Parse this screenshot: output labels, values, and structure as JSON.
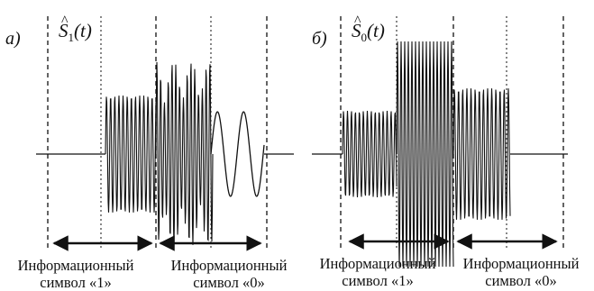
{
  "panel_a": {
    "letter": "а)",
    "signal_name": "S",
    "signal_hat": "^",
    "signal_index": "1",
    "signal_arg": "(t)",
    "symbol_1_line1": "Информационный",
    "symbol_1_line2": "символ «1»",
    "symbol_2_line1": "Информационный",
    "symbol_2_line2": "символ «0»"
  },
  "panel_b": {
    "letter": "б)",
    "signal_name": "S",
    "signal_hat": "^",
    "signal_index": "0",
    "signal_arg": "(t)",
    "symbol_1_line1": "Информационный",
    "symbol_1_line2": "символ «1»",
    "symbol_2_line1": "Информационный",
    "symbol_2_line2": "символ «0»"
  },
  "colors": {
    "line": "#111111",
    "background": "#ffffff"
  }
}
